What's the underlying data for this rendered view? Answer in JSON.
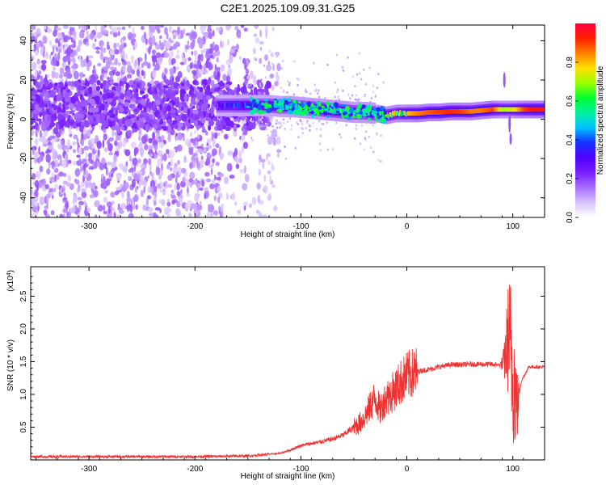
{
  "title": "C2E1.2025.109.09.31.G25",
  "chart_data": [
    {
      "type": "heatmap",
      "xlabel": "Height of straight line (km)",
      "ylabel": "Frequency (Hz)",
      "xlim": [
        -355,
        130
      ],
      "ylim": [
        -50,
        48
      ],
      "xticks": [
        -300,
        -200,
        -100,
        0,
        100
      ],
      "yticks": [
        -40,
        -20,
        0,
        20,
        40
      ],
      "colorbar": {
        "label": "Normalized spectral amplitude",
        "range": [
          0,
          1
        ],
        "ticks": [
          0.0,
          0.2,
          0.4,
          0.6,
          0.8
        ],
        "tick_labels": [
          "0.0",
          "0.2",
          "0.4",
          "0.6",
          "0.8"
        ],
        "colormap": [
          "#ffffff",
          "#d9c2ff",
          "#a76dff",
          "#7a1fff",
          "#5200ff",
          "#1530ff",
          "#00c0ff",
          "#00f0a0",
          "#00ff30",
          "#9aff00",
          "#ffe000",
          "#ff8000",
          "#ff2000",
          "#ff0040"
        ]
      },
      "signal_trace": [
        [
          -180,
          7,
          0.3
        ],
        [
          -170,
          7,
          0.35
        ],
        [
          -160,
          7,
          0.4
        ],
        [
          -150,
          7,
          0.42
        ],
        [
          -140,
          7,
          0.4
        ],
        [
          -130,
          7,
          0.45
        ],
        [
          -120,
          6.5,
          0.5
        ],
        [
          -110,
          6.5,
          0.55
        ],
        [
          -100,
          6,
          0.55
        ],
        [
          -90,
          5.5,
          0.6
        ],
        [
          -80,
          5,
          0.6
        ],
        [
          -70,
          4.5,
          0.6
        ],
        [
          -60,
          4,
          0.58
        ],
        [
          -50,
          3.5,
          0.55
        ],
        [
          -40,
          3.5,
          0.55
        ],
        [
          -30,
          3,
          0.6
        ],
        [
          -20,
          2,
          0.75
        ],
        [
          -10,
          3,
          0.7
        ],
        [
          0,
          3,
          0.8
        ],
        [
          10,
          3,
          0.85
        ],
        [
          20,
          3.5,
          0.88
        ],
        [
          30,
          3.5,
          0.9
        ],
        [
          40,
          4,
          0.92
        ],
        [
          50,
          4,
          0.9
        ],
        [
          60,
          4,
          0.85
        ],
        [
          70,
          4.5,
          0.85
        ],
        [
          80,
          5,
          0.9
        ],
        [
          90,
          5,
          0.7
        ],
        [
          100,
          5,
          0.75
        ],
        [
          110,
          5,
          0.9
        ],
        [
          120,
          5,
          0.95
        ],
        [
          130,
          5,
          0.95
        ]
      ]
    },
    {
      "type": "line",
      "xlabel": "Height of straight line (km)",
      "ylabel": "SNR (10 * v/v)",
      "multiplier_label": "(x10",
      "multiplier_exponent": "4",
      "multiplier_close": ")",
      "xlim": [
        -355,
        130
      ],
      "ylim": [
        0.0,
        2.95
      ],
      "xticks": [
        -300,
        -200,
        -100,
        0,
        100
      ],
      "yticks": [
        0.5,
        1.0,
        1.5,
        2.0,
        2.5
      ],
      "ytick_labels": [
        "0.5",
        "1.0",
        "1.5",
        "2.0",
        "2.5"
      ],
      "color": "#ee3333",
      "series": [
        {
          "x": [
            -355,
            -300,
            -250,
            -200,
            -150,
            -120,
            -110,
            -100,
            -90,
            -80,
            -70,
            -60,
            -50,
            -45,
            -40,
            -35,
            -30,
            -25,
            -20,
            -15,
            -10,
            -5,
            0,
            10,
            20,
            30,
            40,
            60,
            80,
            88,
            92,
            96,
            100,
            104,
            108,
            115,
            130
          ],
          "y": [
            0.05,
            0.05,
            0.05,
            0.05,
            0.06,
            0.1,
            0.15,
            0.22,
            0.25,
            0.28,
            0.32,
            0.38,
            0.5,
            0.55,
            0.65,
            0.8,
            0.95,
            0.75,
            0.95,
            1.0,
            1.1,
            1.2,
            1.28,
            1.35,
            1.38,
            1.42,
            1.45,
            1.46,
            1.46,
            1.45,
            1.5,
            1.9,
            1.4,
            0.8,
            1.2,
            1.42,
            1.42
          ]
        }
      ]
    }
  ]
}
